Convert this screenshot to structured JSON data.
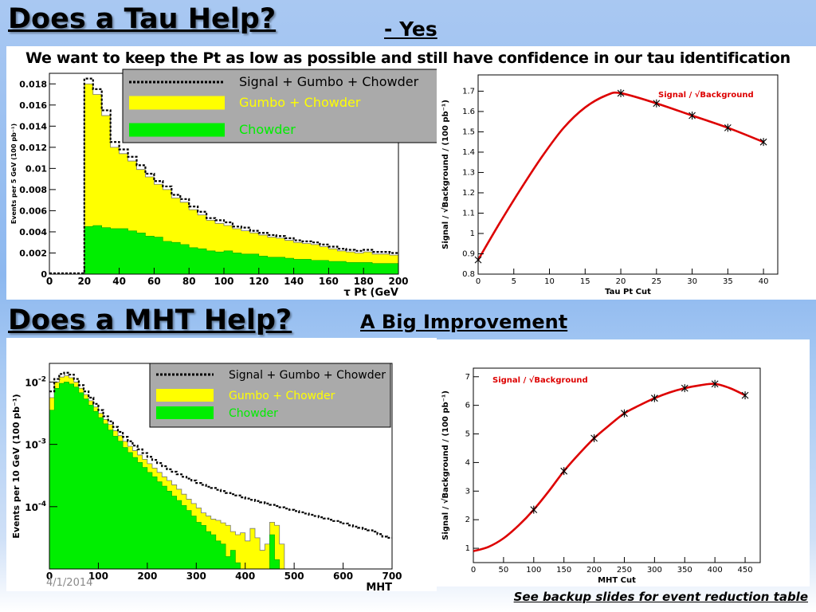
{
  "slide": {
    "title_top": "Does a Tau Help?",
    "answer_top": "- Yes",
    "statement": "We want to keep the Pt as low as possible and still have confidence in our tau identification",
    "title_bottom": "Does a MHT Help?",
    "answer_bottom": "A Big Improvement",
    "date": "4/1/2014",
    "footer": "See backup slides for event  reduction table"
  },
  "colors": {
    "signal": "#000000",
    "gumbo": "#ffff00",
    "chowder": "#00ee00",
    "curve": "#dd0000",
    "legend_bg": "#aaaaaa"
  },
  "chart_data": [
    {
      "type": "area",
      "ylabel": "Events per 5 GeV (100 pb⁻¹)",
      "xlabel": "τ Pt (GeV",
      "xlim": [
        0,
        200
      ],
      "ylim": [
        0,
        0.019
      ],
      "xticks": [
        "0",
        "20",
        "40",
        "60",
        "80",
        "100",
        "120",
        "140",
        "160",
        "180",
        "200"
      ],
      "yticks": [
        "0",
        "0.002",
        "0.004",
        "0.006",
        "0.008",
        "0.01",
        "0.012",
        "0.014",
        "0.016",
        "0.018"
      ],
      "legend": {
        "signal": "Signal + Gumbo + Chowder",
        "gumbo": "Gumbo + Chowder",
        "chowder": "Chowder"
      },
      "bin_width": 5,
      "x_start": 20,
      "total": [
        0.0185,
        0.0175,
        0.0155,
        0.0125,
        0.0118,
        0.0111,
        0.0103,
        0.0095,
        0.0088,
        0.0083,
        0.0075,
        0.0071,
        0.0064,
        0.0059,
        0.0053,
        0.0051,
        0.0049,
        0.0045,
        0.0044,
        0.0041,
        0.0039,
        0.0037,
        0.0036,
        0.0034,
        0.0032,
        0.0031,
        0.003,
        0.0028,
        0.0026,
        0.0024,
        0.0023,
        0.0022,
        0.0023,
        0.0021,
        0.0021,
        0.002
      ],
      "gumbo": [
        0.018,
        0.017,
        0.015,
        0.012,
        0.0114,
        0.0107,
        0.0099,
        0.0092,
        0.0085,
        0.008,
        0.0072,
        0.0068,
        0.0061,
        0.0056,
        0.0051,
        0.0048,
        0.0046,
        0.0043,
        0.0041,
        0.0039,
        0.0037,
        0.0035,
        0.0034,
        0.0032,
        0.003,
        0.0029,
        0.0028,
        0.0026,
        0.0024,
        0.0022,
        0.0021,
        0.002,
        0.0021,
        0.0019,
        0.0019,
        0.0018
      ],
      "chowder": [
        0.0045,
        0.0046,
        0.0044,
        0.0043,
        0.0043,
        0.0041,
        0.0039,
        0.0036,
        0.0035,
        0.0031,
        0.003,
        0.0028,
        0.0025,
        0.0024,
        0.0022,
        0.0021,
        0.0022,
        0.002,
        0.0019,
        0.0019,
        0.0017,
        0.0016,
        0.0016,
        0.0015,
        0.0014,
        0.0014,
        0.0013,
        0.0013,
        0.0012,
        0.0012,
        0.0011,
        0.0011,
        0.0011,
        0.001,
        0.001,
        0.001
      ]
    },
    {
      "type": "line",
      "xlabel": "Tau Pt Cut",
      "ylabel": "Signal / √Background / (100 pb⁻¹)",
      "legend": "Signal / √Background",
      "xlim": [
        0,
        42
      ],
      "ylim": [
        0.8,
        1.78
      ],
      "xticks": [
        "0",
        "5",
        "10",
        "15",
        "20",
        "25",
        "30",
        "35",
        "40"
      ],
      "yticks": [
        "0.8",
        "0.9",
        "1",
        "1.1",
        "1.2",
        "1.3",
        "1.4",
        "1.5",
        "1.6",
        "1.7"
      ],
      "x": [
        0,
        20,
        25,
        30,
        35,
        40
      ],
      "y": [
        0.87,
        1.69,
        1.64,
        1.58,
        1.52,
        1.45
      ],
      "curve": [
        [
          0,
          0.87
        ],
        [
          3,
          1.05
        ],
        [
          6,
          1.22
        ],
        [
          9,
          1.38
        ],
        [
          12,
          1.52
        ],
        [
          15,
          1.62
        ],
        [
          18,
          1.68
        ],
        [
          20,
          1.69
        ],
        [
          25,
          1.64
        ],
        [
          30,
          1.58
        ],
        [
          35,
          1.52
        ],
        [
          40,
          1.45
        ]
      ]
    },
    {
      "type": "area",
      "ylabel": "Events per 10 GeV (100 pb⁻¹)",
      "xlabel": "MHT",
      "xlim": [
        0,
        700
      ],
      "ylog": true,
      "ylim_exp": [
        -5,
        -1.7
      ],
      "xticks": [
        "0",
        "100",
        "200",
        "300",
        "400",
        "500",
        "600",
        "700"
      ],
      "ytick_exp": [
        -4,
        -3,
        -2
      ],
      "legend": {
        "signal": "Signal + Gumbo + Chowder",
        "gumbo": "Gumbo + Chowder",
        "chowder": "Chowder"
      },
      "bin_width": 10,
      "x_start": 0,
      "total_exp": [
        -2.15,
        -1.95,
        -1.87,
        -1.85,
        -1.88,
        -1.95,
        -2.05,
        -2.15,
        -2.25,
        -2.35,
        -2.45,
        -2.55,
        -2.63,
        -2.72,
        -2.8,
        -2.88,
        -2.95,
        -3.02,
        -3.08,
        -3.14,
        -3.2,
        -3.25,
        -3.3,
        -3.35,
        -3.4,
        -3.44,
        -3.48,
        -3.52,
        -3.55,
        -3.58,
        -3.62,
        -3.65,
        -3.68,
        -3.7,
        -3.73,
        -3.75,
        -3.78,
        -3.8,
        -3.82,
        -3.85,
        -3.87,
        -3.89,
        -3.91,
        -3.93,
        -3.95,
        -3.97,
        -3.99,
        -4.01,
        -4.03,
        -4.05,
        -4.07,
        -4.09,
        -4.11,
        -4.13,
        -4.15,
        -4.17,
        -4.19,
        -4.21,
        -4.23,
        -4.25,
        -4.27,
        -4.3,
        -4.32,
        -4.34,
        -4.36,
        -4.38,
        -4.4,
        -4.44,
        -4.48,
        -4.5
      ],
      "gumbo_exp": [
        -2.25,
        -2.0,
        -1.92,
        -1.9,
        -1.93,
        -2.0,
        -2.1,
        -2.2,
        -2.3,
        -2.4,
        -2.5,
        -2.6,
        -2.68,
        -2.78,
        -2.86,
        -2.95,
        -3.03,
        -3.1,
        -3.17,
        -3.24,
        -3.31,
        -3.38,
        -3.45,
        -3.52,
        -3.58,
        -3.65,
        -3.72,
        -3.8,
        -3.88,
        -3.95,
        -4.02,
        -4.1,
        -4.15,
        -4.2,
        -4.22,
        -4.26,
        -4.3,
        -4.4,
        -4.45,
        -4.42,
        -4.55,
        -4.35,
        -4.5,
        -4.7,
        -4.6,
        -4.25,
        -4.3,
        -4.6,
        -5.0,
        -5.0,
        -5.0,
        -5.0,
        -5.0,
        -5.0,
        -5.0,
        -5.0,
        -5.0,
        -5.0,
        -5.0,
        -5.0,
        -5.0,
        -5.0,
        -5.0,
        -5.0,
        -5.0,
        -5.0,
        -5.0,
        -5.0,
        -5.0,
        -5.0
      ],
      "chowder_exp": [
        -2.45,
        -2.1,
        -2.02,
        -2.0,
        -2.03,
        -2.08,
        -2.17,
        -2.27,
        -2.37,
        -2.47,
        -2.57,
        -2.67,
        -2.77,
        -2.87,
        -2.95,
        -3.05,
        -3.13,
        -3.21,
        -3.29,
        -3.37,
        -3.45,
        -3.52,
        -3.6,
        -3.67,
        -3.75,
        -3.83,
        -3.9,
        -3.98,
        -4.06,
        -4.15,
        -4.25,
        -4.3,
        -4.4,
        -4.45,
        -4.55,
        -4.6,
        -4.8,
        -4.7,
        -4.9,
        -5.0,
        -5.0,
        -5.0,
        -5.0,
        -5.0,
        -5.0,
        -4.45,
        -4.85,
        -5.0,
        -5.0,
        -5.0,
        -5.0,
        -5.0,
        -5.0,
        -5.0,
        -5.0,
        -5.0,
        -5.0,
        -5.0,
        -5.0,
        -5.0,
        -5.0,
        -5.0,
        -5.0,
        -5.0,
        -5.0,
        -5.0,
        -5.0,
        -5.0,
        -5.0,
        -5.0
      ]
    },
    {
      "type": "line",
      "xlabel": "MHT Cut",
      "ylabel": "Signal / √Background / (100 pb⁻¹)",
      "legend": "Signal / √Background",
      "xlim": [
        0,
        475
      ],
      "ylim": [
        0.5,
        7.3
      ],
      "xticks": [
        "0",
        "50",
        "100",
        "150",
        "200",
        "250",
        "300",
        "350",
        "400",
        "450"
      ],
      "yticks": [
        "1",
        "2",
        "3",
        "4",
        "5",
        "6",
        "7"
      ],
      "x": [
        100,
        150,
        200,
        250,
        300,
        350,
        400,
        450
      ],
      "y": [
        2.35,
        3.7,
        4.85,
        5.72,
        6.25,
        6.6,
        6.75,
        6.35
      ],
      "curve": [
        [
          0,
          0.9
        ],
        [
          25,
          1.05
        ],
        [
          50,
          1.35
        ],
        [
          75,
          1.8
        ],
        [
          100,
          2.35
        ],
        [
          125,
          3.0
        ],
        [
          150,
          3.7
        ],
        [
          175,
          4.3
        ],
        [
          200,
          4.85
        ],
        [
          225,
          5.3
        ],
        [
          250,
          5.72
        ],
        [
          275,
          6.0
        ],
        [
          300,
          6.25
        ],
        [
          325,
          6.45
        ],
        [
          350,
          6.6
        ],
        [
          375,
          6.7
        ],
        [
          400,
          6.75
        ],
        [
          425,
          6.6
        ],
        [
          450,
          6.35
        ]
      ]
    }
  ]
}
